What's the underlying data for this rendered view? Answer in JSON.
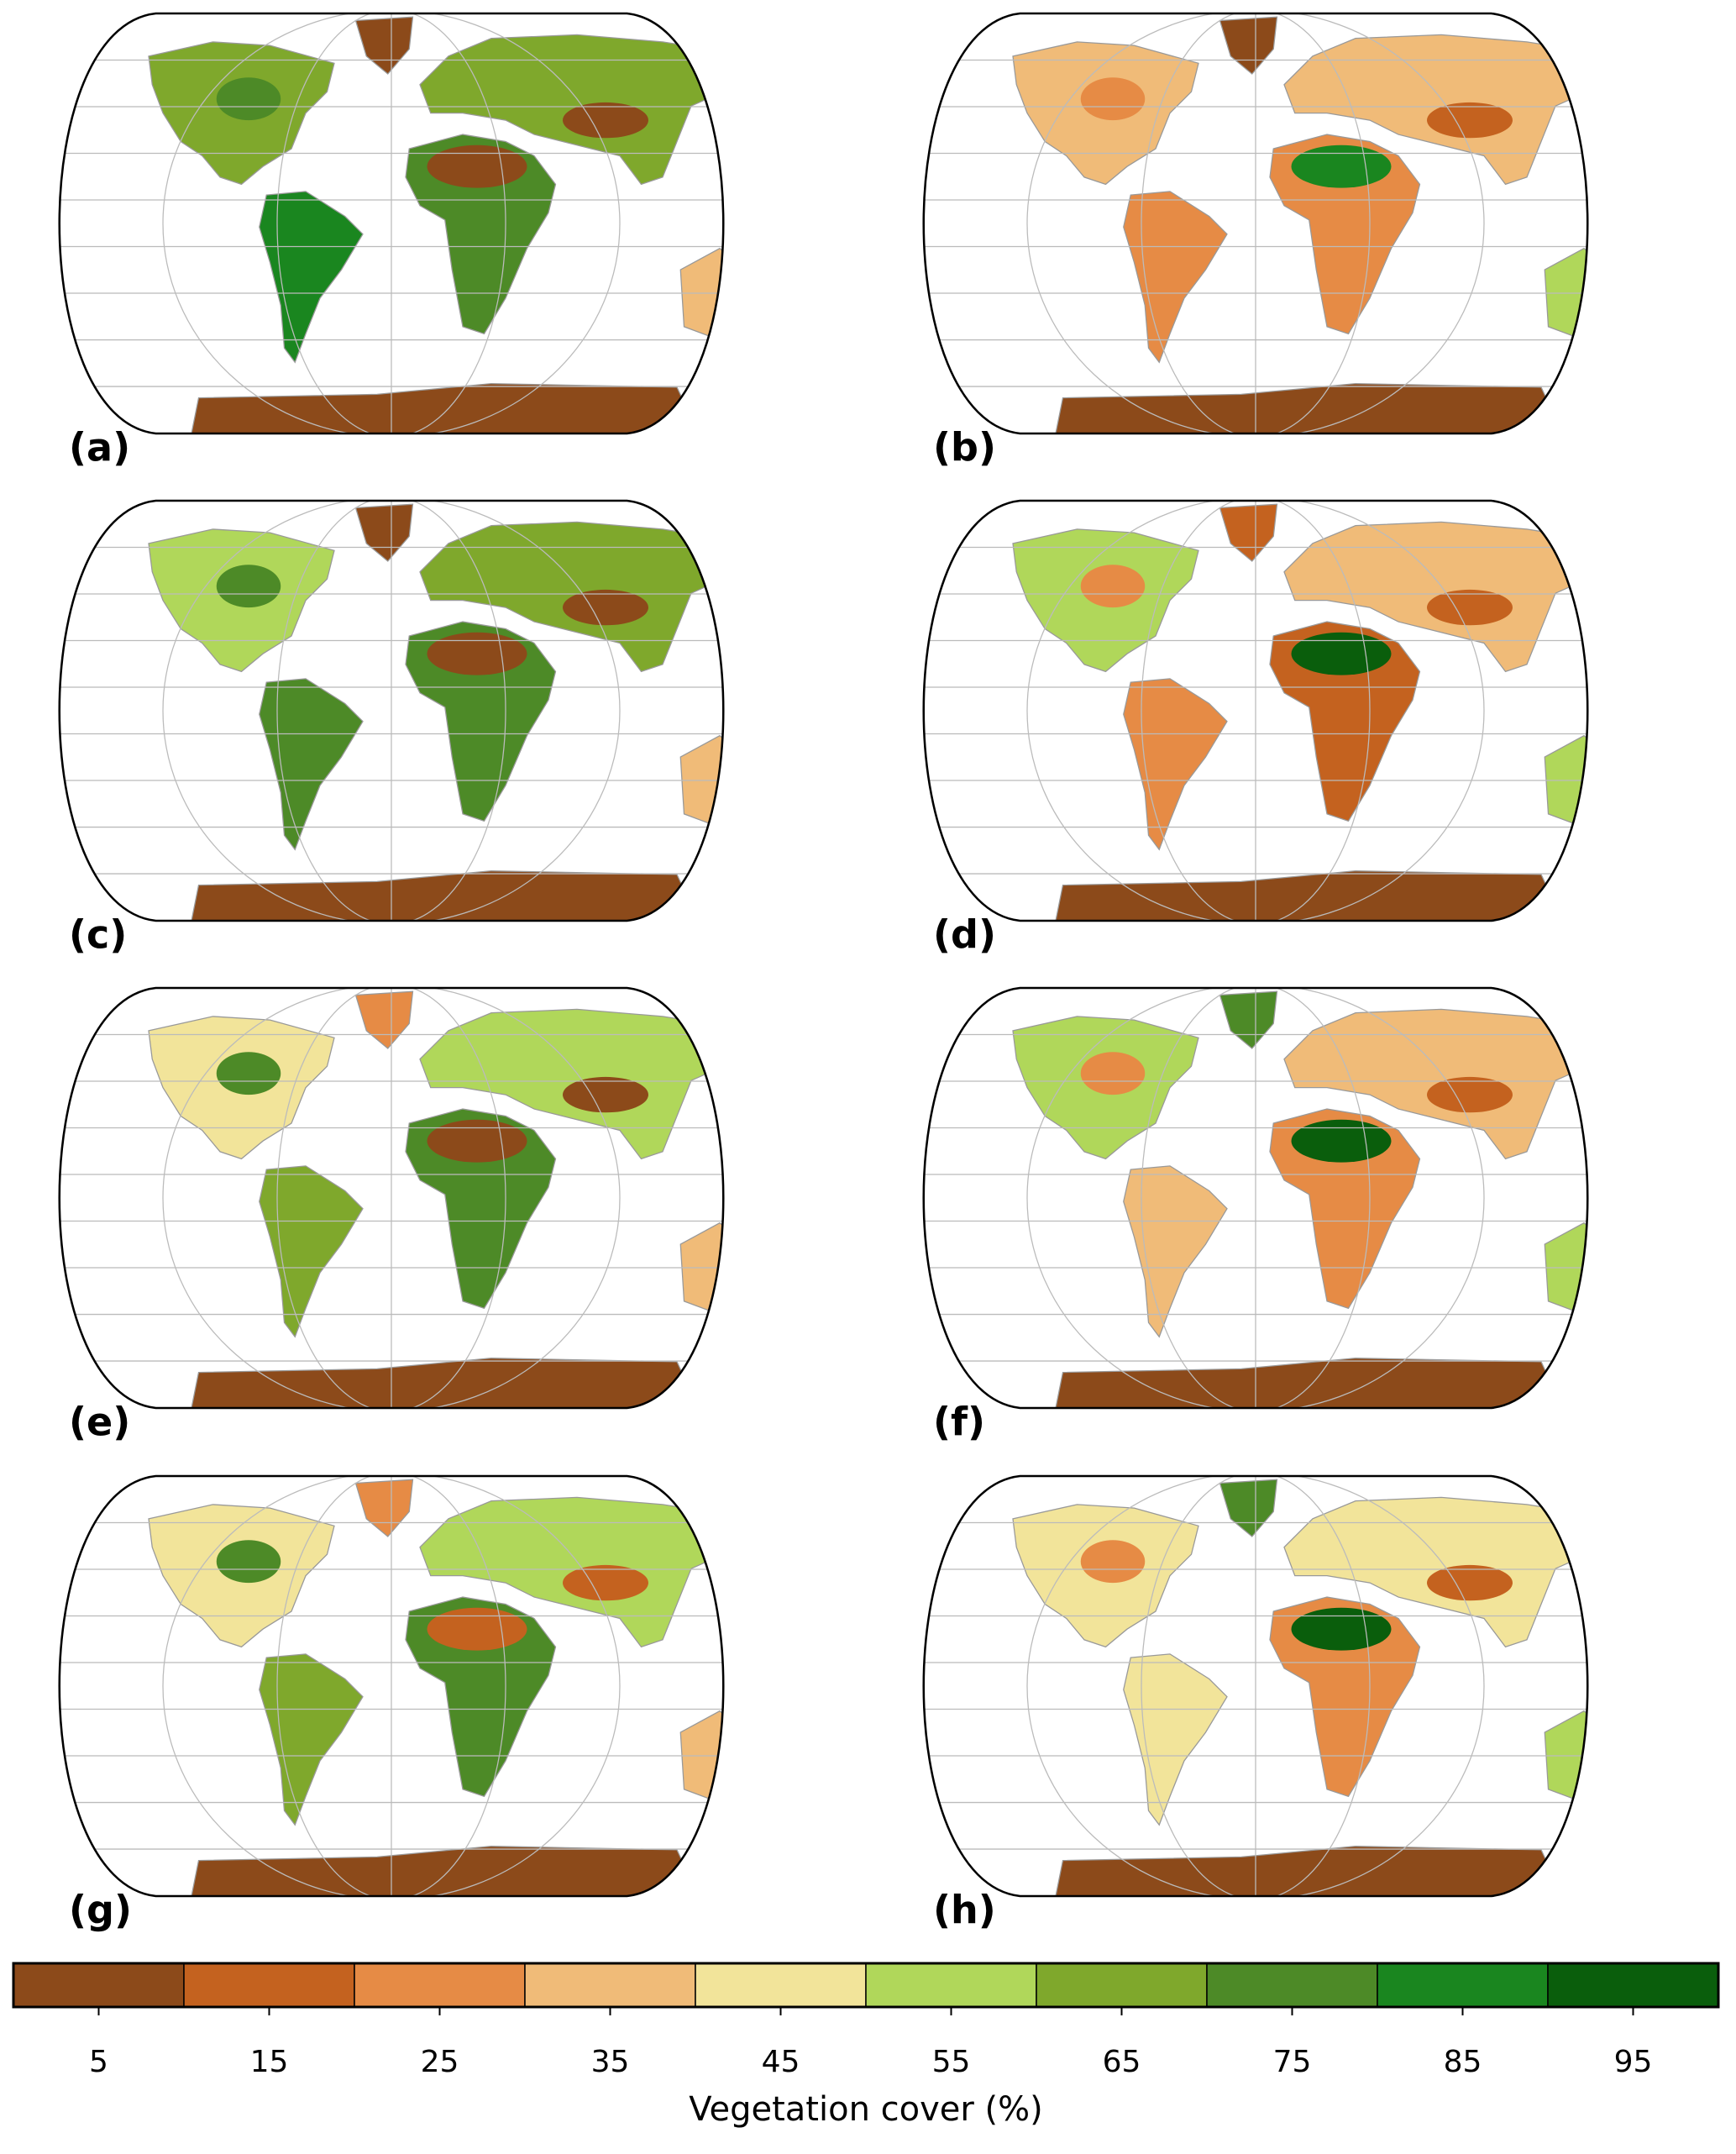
{
  "panels": [
    {
      "label": "(a)"
    },
    {
      "label": "(b)"
    },
    {
      "label": "(c)"
    },
    {
      "label": "(d)"
    },
    {
      "label": "(e)"
    },
    {
      "label": "(f)"
    },
    {
      "label": "(g)"
    },
    {
      "label": "(h)"
    }
  ],
  "colorbar": {
    "label": "Vegetation cover (%)",
    "lim": [
      0,
      100
    ],
    "ticks": [
      5,
      15,
      25,
      35,
      45,
      55,
      65,
      75,
      85,
      95
    ],
    "colors": [
      "#8c4a1a",
      "#c4621f",
      "#e68b45",
      "#f0bb78",
      "#f2e49a",
      "#b0d75a",
      "#7fa82c",
      "#4d8a27",
      "#1a861f",
      "#0a5e0c"
    ]
  }
}
